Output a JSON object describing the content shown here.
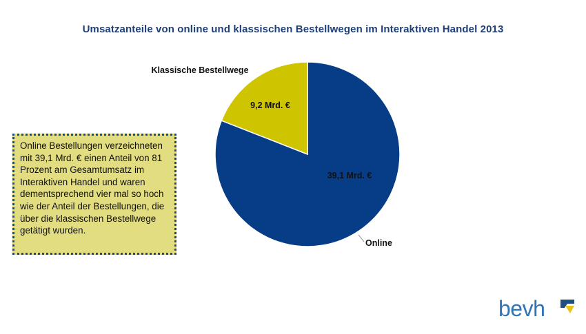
{
  "chart_data": {
    "type": "pie",
    "title": "Umsatzanteile von online und klassischen Bestellwegen im Interaktiven Handel 2013",
    "slices": [
      {
        "name": "Online",
        "value": 39.1,
        "value_label": "39,1 Mrd. €",
        "color": "#073d86"
      },
      {
        "name": "Klassische Bestellwege",
        "value": 9.2,
        "value_label": "9,2 Mrd. €",
        "color": "#cfc400"
      }
    ]
  },
  "textbox": {
    "text": "Online Bestellungen verzeichneten mit 39,1 Mrd. € einen Anteil von 81 Prozent am Gesamtumsatz im Interaktiven Handel und waren dementsprechend vier mal so hoch wie der Anteil der Bestellungen, die über die klassischen Bestellwege getätigt wurden."
  },
  "logo": {
    "text": "bevh",
    "colors": {
      "text": "#2f74b5",
      "mark_dark": "#1f4f82",
      "mark_yellow": "#e3c51b"
    }
  }
}
